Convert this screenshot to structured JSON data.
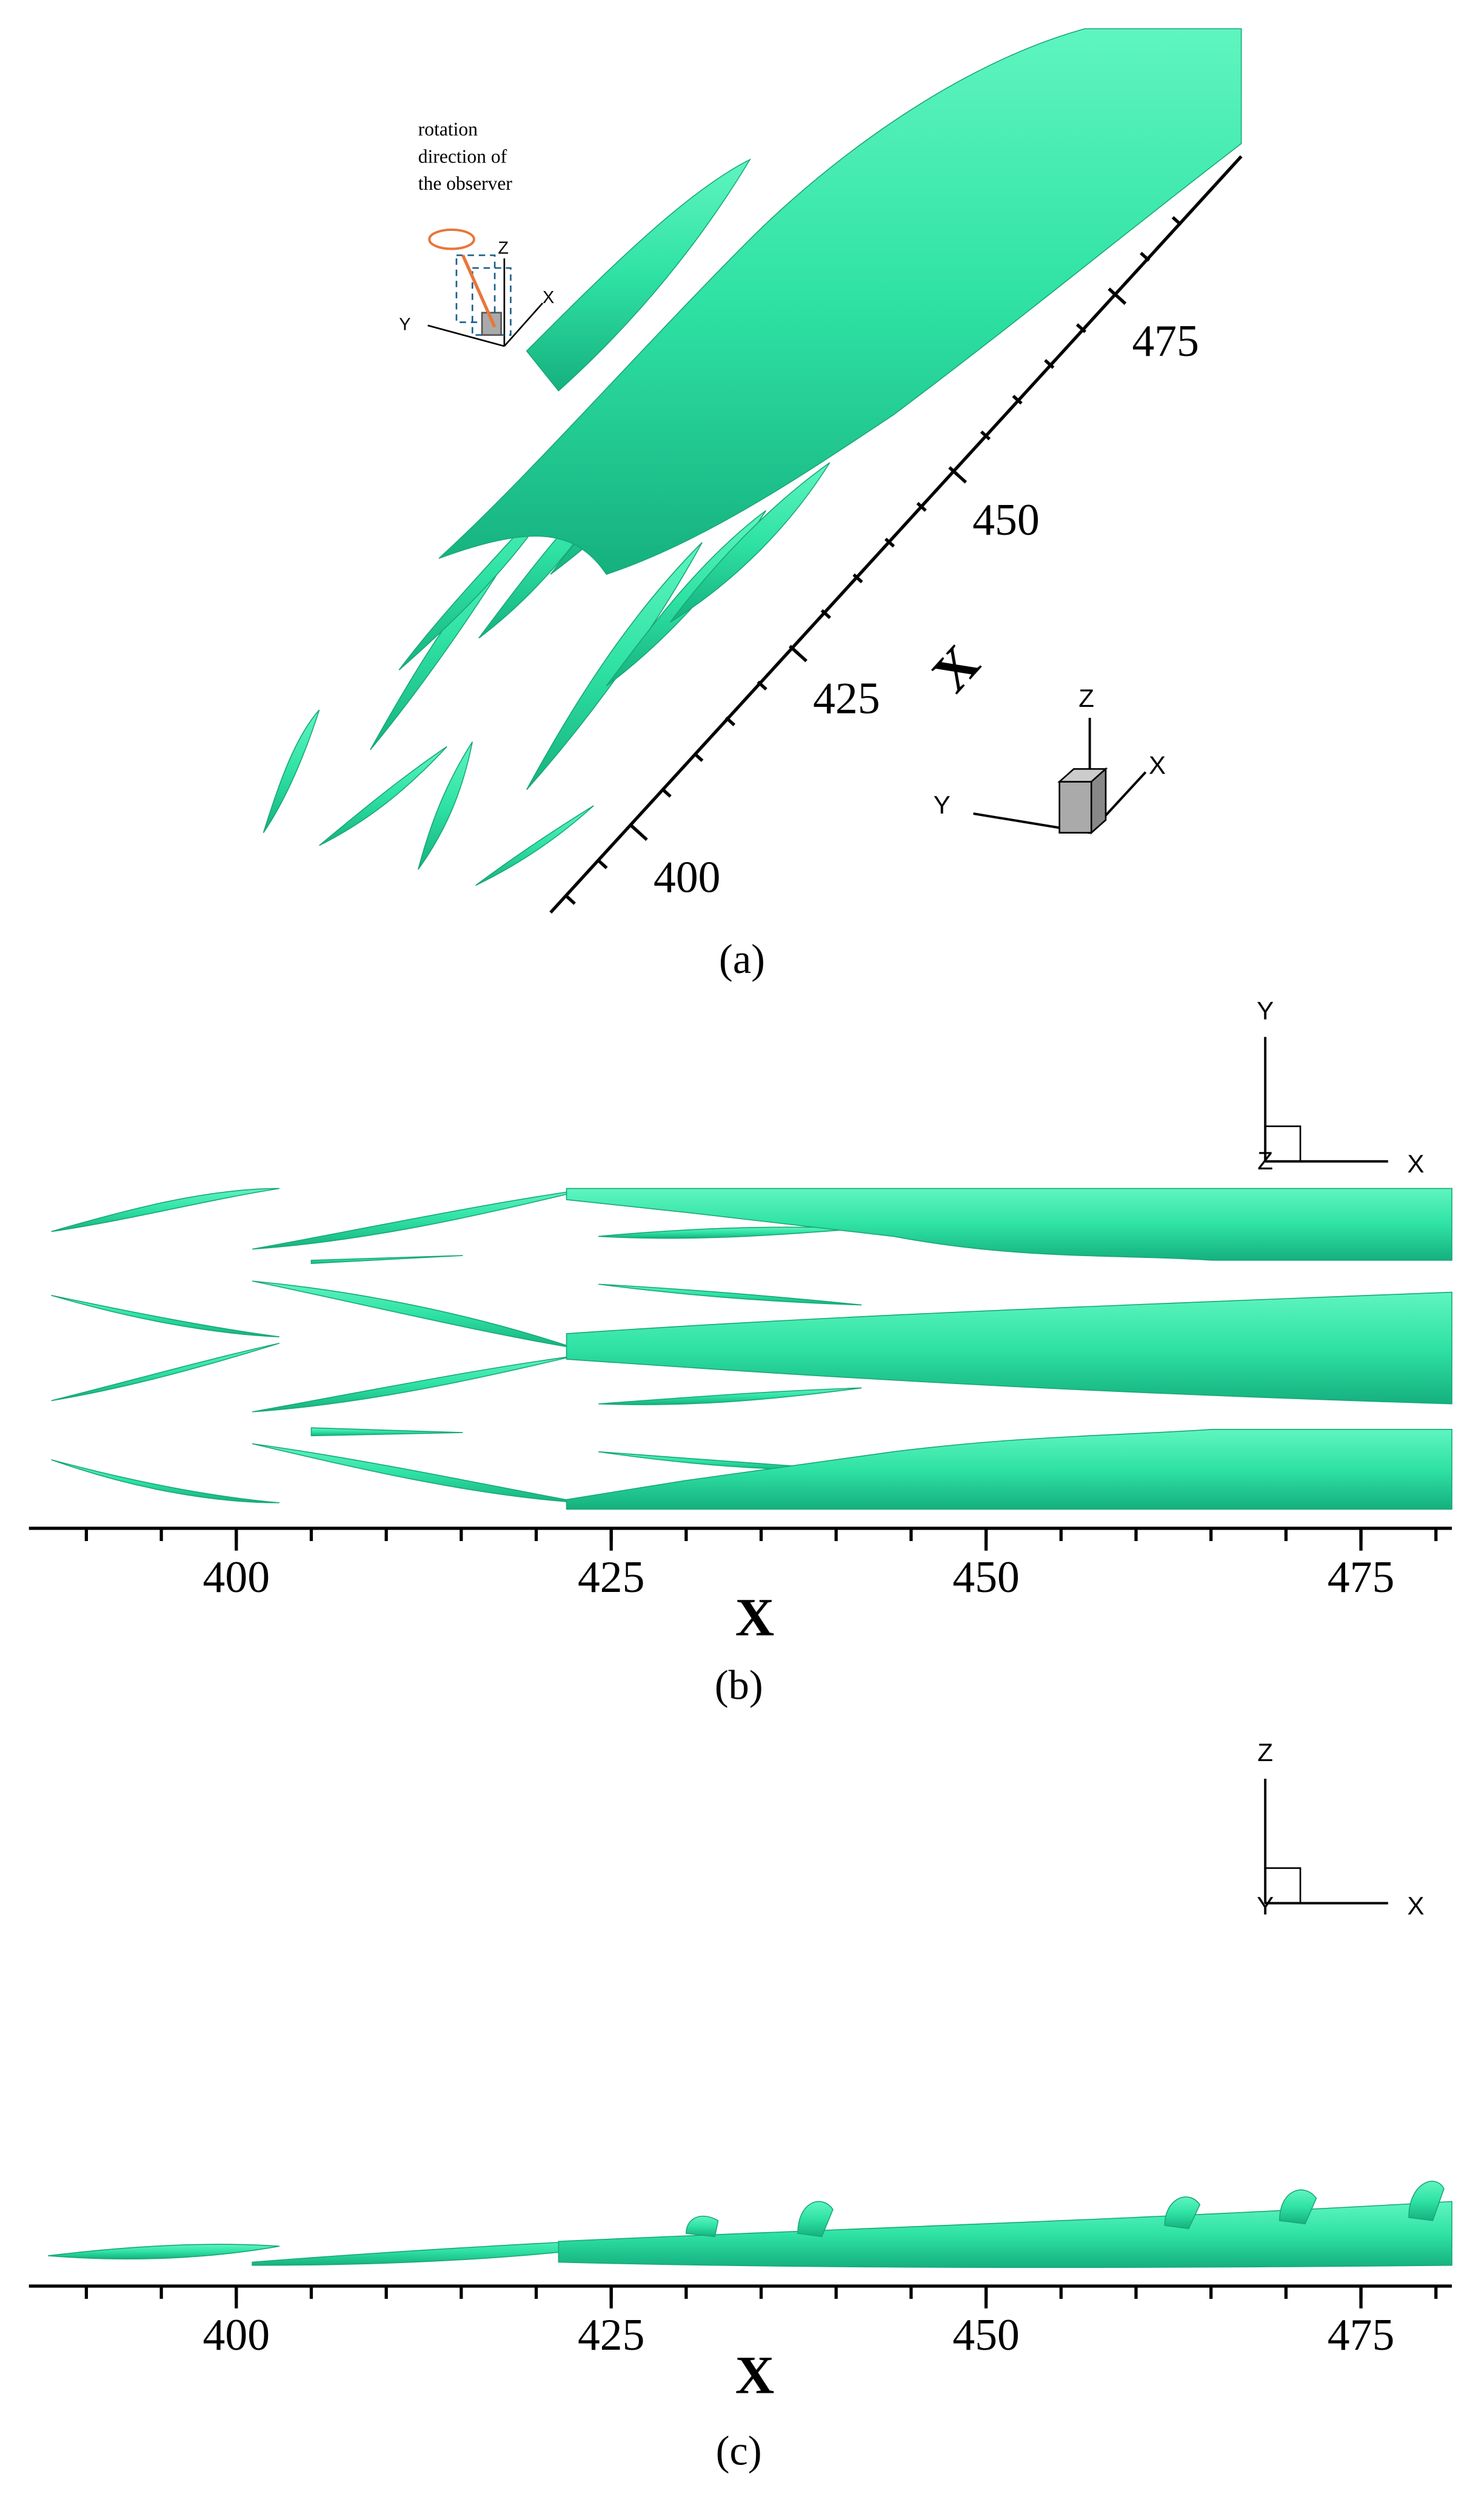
{
  "panels": [
    {
      "caption": "(a)",
      "axis_label": "X",
      "ticks": [
        400,
        425,
        450,
        475
      ],
      "triad": {
        "x": "X",
        "y": "Y",
        "z": "Z"
      },
      "inset_triad": {
        "x": "X",
        "y": "Y",
        "z": "Z"
      },
      "note": [
        "rotation",
        "direction of",
        "the observer"
      ]
    },
    {
      "caption": "(b)",
      "axis_label": "X",
      "ticks": [
        400,
        425,
        450,
        475
      ],
      "triad": {
        "x": "X",
        "y": "Y",
        "z": "Z"
      }
    },
    {
      "caption": "(c)",
      "axis_label": "X",
      "ticks": [
        400,
        425,
        450,
        475
      ],
      "triad": {
        "x": "X",
        "y": "Y",
        "z": "Z"
      }
    }
  ]
}
